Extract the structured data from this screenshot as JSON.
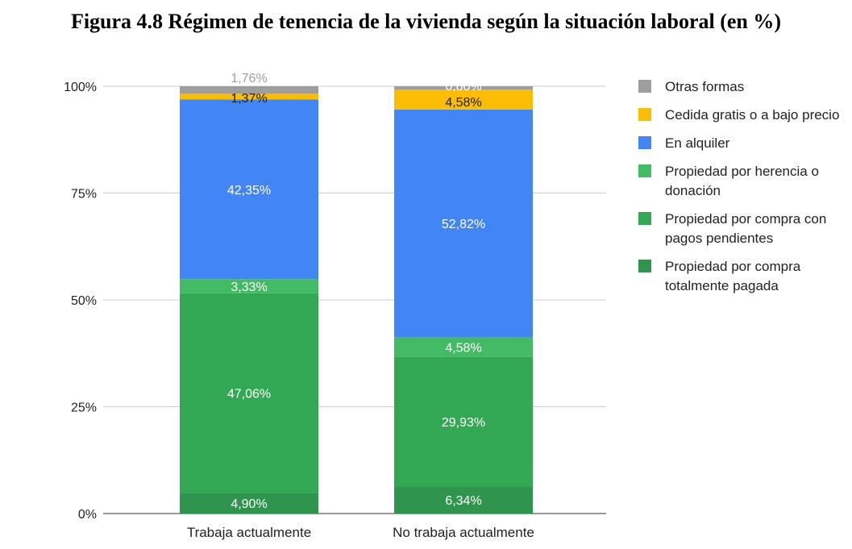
{
  "title": "Figura 4.8 Régimen de tenencia de la vivienda según la situación laboral (en %)",
  "chart_data": {
    "type": "bar",
    "stacked": true,
    "normalized_percent": true,
    "categories": [
      "Trabaja actualmente",
      "No trabaja actualmente"
    ],
    "series": [
      {
        "name": "Propiedad por compra totalmente pagada",
        "color": "#2f944e",
        "values": [
          4.9,
          6.34
        ],
        "labels": [
          "4,90%",
          "6,34%"
        ]
      },
      {
        "name": "Propiedad por compra con pagos pendientes",
        "color": "#33a852",
        "values": [
          47.06,
          29.93
        ],
        "labels": [
          "47,06%",
          "29,93%"
        ]
      },
      {
        "name": "Propiedad por herencia o donación",
        "color": "#42bb64",
        "values": [
          3.33,
          4.58
        ],
        "labels": [
          "3,33%",
          "4,58%"
        ]
      },
      {
        "name": "En alquiler",
        "color": "#4285f4",
        "values": [
          42.35,
          52.82
        ],
        "labels": [
          "42,35%",
          "52,82%"
        ]
      },
      {
        "name": "Cedida gratis o a bajo precio",
        "color": "#fbbc04",
        "values": [
          1.37,
          4.58
        ],
        "labels": [
          "1,37%",
          "4,58%"
        ]
      },
      {
        "name": "Otras formas",
        "color": "#9e9e9e",
        "values": [
          1.76,
          0.8
        ],
        "labels": [
          "1,76%",
          "0,80%"
        ]
      }
    ],
    "y_ticks": [
      "0%",
      "25%",
      "50%",
      "75%",
      "100%"
    ],
    "ylim": [
      0,
      100
    ],
    "grid": true,
    "legend_position": "right"
  }
}
